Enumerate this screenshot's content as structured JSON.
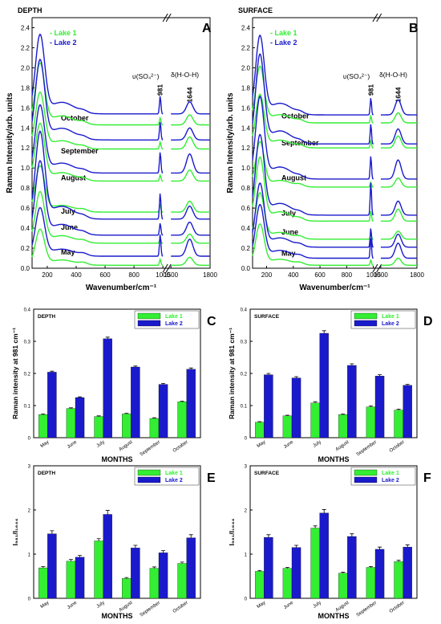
{
  "colors": {
    "lake1": "#33ee33",
    "lake2": "#1a1acc",
    "axis": "#000000"
  },
  "chart_data": [
    {
      "id": "A",
      "type": "line",
      "panel_label": "A",
      "corner_label": "DEPTH",
      "xlabel": "Wavenumber/cm⁻¹",
      "ylabel": "Raman Intensity/arb. units",
      "xlim": [
        0,
        1800
      ],
      "ylim": [
        0,
        2.5
      ],
      "x_ticks": [
        "200",
        "400",
        "600",
        "800",
        "1000",
        "1500",
        "1800"
      ],
      "y_ticks": [
        "0.0",
        "0.2",
        "0.4",
        "0.6",
        "0.8",
        "1.0",
        "1.2",
        "1.4",
        "1.6",
        "1.8",
        "2.0",
        "2.2",
        "2.4"
      ],
      "axis_break": "between 1000 and 1500",
      "legend": [
        "- Lake 1",
        "- Lake 2"
      ],
      "peak_labels": {
        "sulfate": "υ(SO₄²⁻)",
        "sulfate_pos": "981",
        "water": "δ(H-O-H)",
        "water_pos": "1644"
      },
      "month_labels": [
        {
          "text": "October",
          "y": 1.5
        },
        {
          "text": "September",
          "y": 1.17
        },
        {
          "text": "August",
          "y": 0.9
        },
        {
          "text": "July",
          "y": 0.57
        },
        {
          "text": "June",
          "y": 0.41
        },
        {
          "text": "May",
          "y": 0.16
        }
      ],
      "series": [
        {
          "name": "Lake 1",
          "baselines": [
            0.03,
            0.25,
            0.56,
            0.87,
            1.19,
            1.43
          ],
          "peak981": [
            0.06,
            0.05,
            0.07,
            0.06,
            0.07,
            0.07
          ],
          "peak1644": [
            0.08,
            0.09,
            0.11,
            0.11,
            0.12,
            0.1
          ],
          "start": [
            0.35,
            0.5,
            0.45,
            0.56,
            0.55,
            0.6
          ]
        },
        {
          "name": "Lake 2",
          "baselines": [
            0.12,
            0.33,
            0.49,
            0.95,
            1.28,
            1.54
          ],
          "peak981": [
            0.22,
            0.12,
            0.26,
            0.21,
            0.18,
            0.18
          ],
          "peak1644": [
            0.17,
            0.13,
            0.13,
            0.19,
            0.12,
            0.12
          ],
          "start": [
            0.47,
            0.72,
            0.85,
            0.66,
            0.78,
            0.77
          ]
        }
      ]
    },
    {
      "id": "B",
      "type": "line",
      "panel_label": "B",
      "corner_label": "SURFACE",
      "xlabel": "Wavenumber/cm⁻¹",
      "ylabel": "Raman Intensity/arb. units",
      "xlim": [
        0,
        1800
      ],
      "ylim": [
        0,
        2.5
      ],
      "x_ticks": [
        "200",
        "400",
        "600",
        "800",
        "1000",
        "1500",
        "1800"
      ],
      "y_ticks": [
        "0.0",
        "0.2",
        "0.4",
        "0.6",
        "0.8",
        "1.0",
        "1.2",
        "1.4",
        "1.6",
        "1.8",
        "2.0",
        "2.2",
        "2.4"
      ],
      "axis_break": "between 1000 and 1500",
      "legend": [
        "- Lake 1",
        "- Lake 2"
      ],
      "peak_labels": {
        "sulfate": "υ(SO₄²⁻)",
        "sulfate_pos": "981",
        "water": "δ(H-O-H)",
        "water_pos": "1644"
      },
      "month_labels": [
        {
          "text": "October",
          "y": 1.52
        },
        {
          "text": "September",
          "y": 1.25
        },
        {
          "text": "August",
          "y": 0.9
        },
        {
          "text": "July",
          "y": 0.55
        },
        {
          "text": "June",
          "y": 0.36
        },
        {
          "text": "May",
          "y": 0.15
        }
      ],
      "series": [
        {
          "name": "Lake 1",
          "baselines": [
            0.03,
            0.29,
            0.47,
            0.81,
            1.2,
            1.45
          ],
          "peak981": [
            0.05,
            0.05,
            0.1,
            0.05,
            0.07,
            0.07
          ],
          "peak1644": [
            0.07,
            0.08,
            0.12,
            0.09,
            0.12,
            0.1
          ],
          "start": [
            0.4,
            0.45,
            0.62,
            0.44,
            0.52,
            0.55
          ]
        },
        {
          "name": "Lake 2",
          "baselines": [
            0.1,
            0.21,
            0.53,
            0.89,
            1.24,
            1.53
          ],
          "peak981": [
            0.2,
            0.19,
            0.33,
            0.23,
            0.2,
            0.17
          ],
          "peak1644": [
            0.15,
            0.13,
            0.14,
            0.19,
            0.15,
            0.15
          ],
          "start": [
            0.52,
            0.62,
            0.78,
            0.8,
            0.87,
            0.77
          ]
        }
      ]
    },
    {
      "id": "C",
      "type": "bar",
      "panel_label": "C",
      "corner_label": "DEPTH",
      "categories": [
        "May",
        "June",
        "July",
        "August",
        "September",
        "October"
      ],
      "xlabel": "MONTHS",
      "ylabel": "Raman intensity at 981 cm⁻¹",
      "ylim": [
        0,
        0.4
      ],
      "y_ticks": [
        "0",
        "0.1",
        "0.2",
        "0.3",
        "0.4"
      ],
      "series": [
        {
          "name": "Lake 1",
          "values": [
            0.072,
            0.091,
            0.066,
            0.074,
            0.06,
            0.112
          ],
          "errors": [
            0.002,
            0.002,
            0.002,
            0.002,
            0.002,
            0.002
          ]
        },
        {
          "name": "Lake 2",
          "values": [
            0.204,
            0.125,
            0.308,
            0.22,
            0.166,
            0.213
          ],
          "errors": [
            0.003,
            0.002,
            0.005,
            0.003,
            0.003,
            0.004
          ]
        }
      ]
    },
    {
      "id": "D",
      "type": "bar",
      "panel_label": "D",
      "corner_label": "SURFACE",
      "categories": [
        "May",
        "June",
        "July",
        "August",
        "September",
        "October"
      ],
      "xlabel": "MONTHS",
      "ylabel": "Raman intensity at 981 cm⁻¹",
      "ylim": [
        0,
        0.4
      ],
      "y_ticks": [
        "0",
        "0.1",
        "0.2",
        "0.3",
        "0.4"
      ],
      "series": [
        {
          "name": "Lake 1",
          "values": [
            0.048,
            0.068,
            0.108,
            0.072,
            0.096,
            0.086
          ],
          "errors": [
            0.002,
            0.002,
            0.004,
            0.002,
            0.003,
            0.003
          ]
        },
        {
          "name": "Lake 2",
          "values": [
            0.196,
            0.186,
            0.325,
            0.225,
            0.192,
            0.163
          ],
          "errors": [
            0.004,
            0.004,
            0.008,
            0.005,
            0.004,
            0.003
          ]
        }
      ]
    },
    {
      "id": "E",
      "type": "bar",
      "panel_label": "E",
      "corner_label": "DEPTH",
      "categories": [
        "May",
        "June",
        "July",
        "August",
        "September",
        "October"
      ],
      "xlabel": "MONTHS",
      "ylabel": "I₉₈₁/I₁₆₄₄",
      "ylim": [
        0,
        3
      ],
      "y_ticks": [
        "0",
        "1",
        "2",
        "3"
      ],
      "series": [
        {
          "name": "Lake 1",
          "values": [
            0.69,
            0.84,
            1.3,
            0.45,
            0.68,
            0.79
          ],
          "errors": [
            0.03,
            0.04,
            0.05,
            0.02,
            0.03,
            0.03
          ]
        },
        {
          "name": "Lake 2",
          "values": [
            1.46,
            0.93,
            1.9,
            1.14,
            1.03,
            1.37
          ],
          "errors": [
            0.07,
            0.04,
            0.09,
            0.06,
            0.05,
            0.07
          ]
        }
      ]
    },
    {
      "id": "F",
      "type": "bar",
      "panel_label": "F",
      "corner_label": "SURFACE",
      "categories": [
        "May",
        "June",
        "July",
        "August",
        "September",
        "October"
      ],
      "xlabel": "MONTHS",
      "ylabel": "I₉₈₁/I₁₆₄₄",
      "ylim": [
        0,
        3
      ],
      "y_ticks": [
        "0",
        "1",
        "2",
        "3"
      ],
      "series": [
        {
          "name": "Lake 1",
          "values": [
            0.61,
            0.68,
            1.59,
            0.57,
            0.7,
            0.83
          ],
          "errors": [
            0.02,
            0.02,
            0.05,
            0.02,
            0.02,
            0.03
          ]
        },
        {
          "name": "Lake 2",
          "values": [
            1.38,
            1.15,
            1.93,
            1.4,
            1.11,
            1.16
          ],
          "errors": [
            0.06,
            0.05,
            0.08,
            0.06,
            0.05,
            0.05
          ]
        }
      ]
    }
  ]
}
